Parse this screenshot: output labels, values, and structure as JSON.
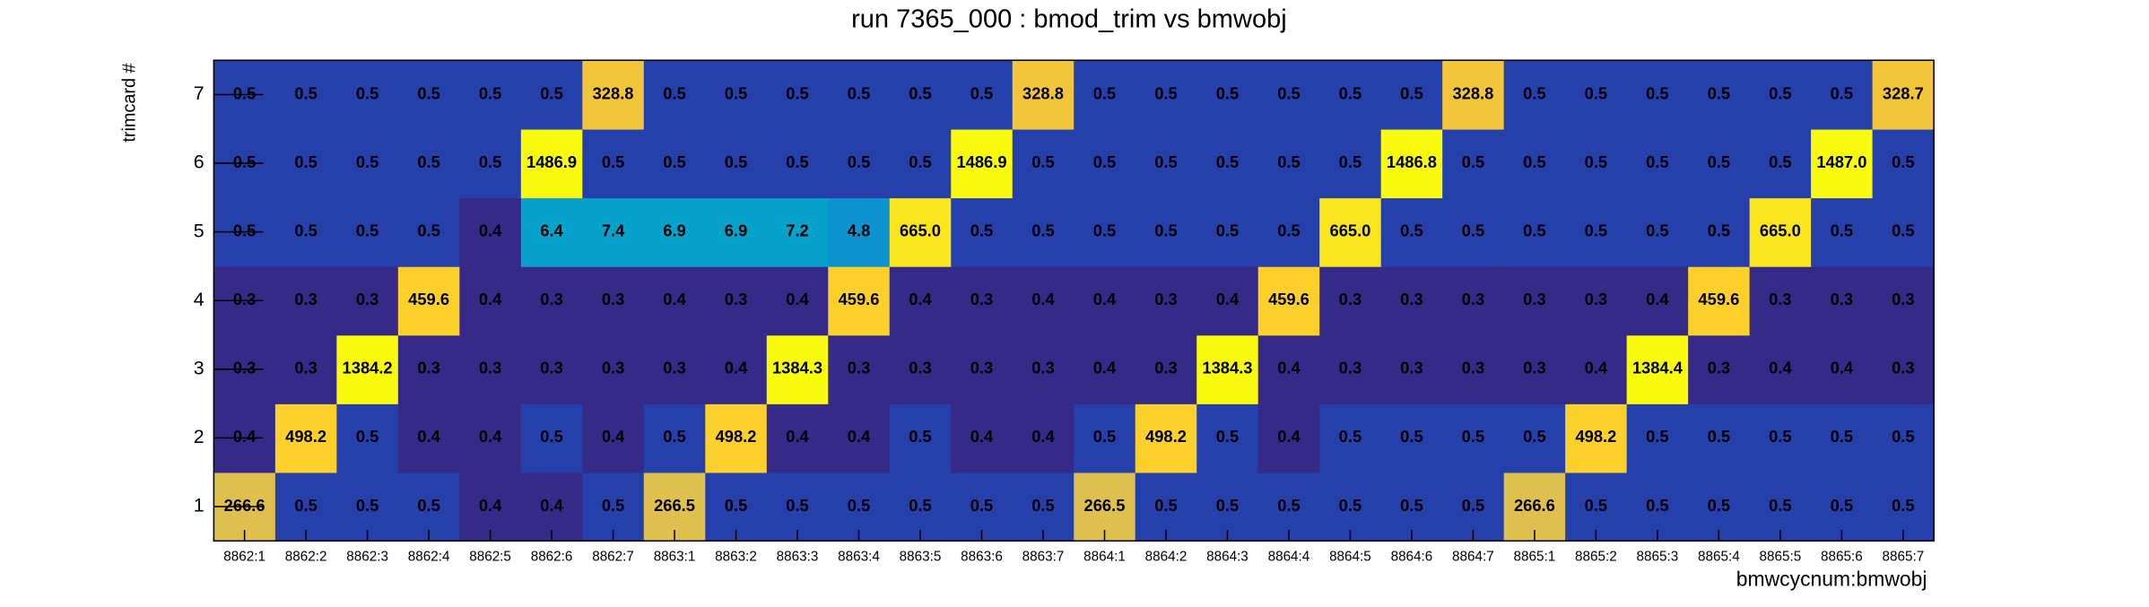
{
  "chart_data": {
    "type": "heatmap",
    "title": "run 7365_000 : bmod_trim vs bmwobj",
    "x_label": "bmwcycnum:bmwobj",
    "y_label": "trimcard #",
    "categories": [
      "8862:1",
      "8862:2",
      "8862:3",
      "8862:4",
      "8862:5",
      "8862:6",
      "8862:7",
      "8863:1",
      "8863:2",
      "8863:3",
      "8863:4",
      "8863:5",
      "8863:6",
      "8863:7",
      "8864:1",
      "8864:2",
      "8864:3",
      "8864:4",
      "8864:5",
      "8864:6",
      "8864:7",
      "8865:1",
      "8865:2",
      "8865:3",
      "8865:4",
      "8865:5",
      "8865:6",
      "8865:7"
    ],
    "y_categories": [
      "1",
      "2",
      "3",
      "4",
      "5",
      "6",
      "7"
    ],
    "values": [
      [
        266.6,
        0.5,
        0.5,
        0.5,
        0.4,
        0.4,
        0.5,
        266.5,
        0.5,
        0.5,
        0.5,
        0.5,
        0.5,
        0.5,
        266.5,
        0.5,
        0.5,
        0.5,
        0.5,
        0.5,
        0.5,
        266.6,
        0.5,
        0.5,
        0.5,
        0.5,
        0.5,
        0.5
      ],
      [
        0.4,
        498.2,
        0.5,
        0.4,
        0.4,
        0.5,
        0.4,
        0.5,
        498.2,
        0.4,
        0.4,
        0.5,
        0.4,
        0.4,
        0.5,
        498.2,
        0.5,
        0.4,
        0.5,
        0.5,
        0.5,
        0.5,
        498.2,
        0.5,
        0.5,
        0.5,
        0.5,
        0.5
      ],
      [
        0.3,
        0.3,
        1384.2,
        0.3,
        0.3,
        0.3,
        0.3,
        0.3,
        0.4,
        1384.3,
        0.3,
        0.3,
        0.3,
        0.3,
        0.4,
        0.3,
        1384.3,
        0.4,
        0.3,
        0.3,
        0.3,
        0.3,
        0.4,
        1384.4,
        0.3,
        0.4,
        0.4,
        0.3
      ],
      [
        0.3,
        0.3,
        0.3,
        459.6,
        0.4,
        0.3,
        0.3,
        0.4,
        0.3,
        0.4,
        459.6,
        0.4,
        0.3,
        0.4,
        0.4,
        0.3,
        0.4,
        459.6,
        0.3,
        0.3,
        0.3,
        0.3,
        0.3,
        0.4,
        459.6,
        0.3,
        0.3,
        0.3
      ],
      [
        0.5,
        0.5,
        0.5,
        0.5,
        0.4,
        6.4,
        7.4,
        6.9,
        6.9,
        7.2,
        4.8,
        665,
        0.5,
        0.5,
        0.5,
        0.5,
        0.5,
        0.5,
        665,
        0.5,
        0.5,
        0.5,
        0.5,
        0.5,
        0.5,
        665,
        0.5,
        0.5
      ],
      [
        0.5,
        0.5,
        0.5,
        0.5,
        0.5,
        1486.9,
        0.5,
        0.5,
        0.5,
        0.5,
        0.5,
        0.5,
        1486.9,
        0.5,
        0.5,
        0.5,
        0.5,
        0.5,
        0.5,
        1486.8,
        0.5,
        0.5,
        0.5,
        0.5,
        0.5,
        0.5,
        1487,
        0.5
      ],
      [
        0.5,
        0.5,
        0.5,
        0.5,
        0.5,
        0.5,
        328.8,
        0.5,
        0.5,
        0.5,
        0.5,
        0.5,
        0.5,
        328.8,
        0.5,
        0.5,
        0.5,
        0.5,
        0.5,
        0.5,
        328.8,
        0.5,
        0.5,
        0.5,
        0.5,
        0.5,
        0.5,
        328.7
      ]
    ],
    "value_labels": [
      [
        "266.6",
        "0.5",
        "0.5",
        "0.5",
        "0.4",
        "0.4",
        "0.5",
        "266.5",
        "0.5",
        "0.5",
        "0.5",
        "0.5",
        "0.5",
        "0.5",
        "266.5",
        "0.5",
        "0.5",
        "0.5",
        "0.5",
        "0.5",
        "0.5",
        "266.6",
        "0.5",
        "0.5",
        "0.5",
        "0.5",
        "0.5",
        "0.5"
      ],
      [
        "0.4",
        "498.2",
        "0.5",
        "0.4",
        "0.4",
        "0.5",
        "0.4",
        "0.5",
        "498.2",
        "0.4",
        "0.4",
        "0.5",
        "0.4",
        "0.4",
        "0.5",
        "498.2",
        "0.5",
        "0.4",
        "0.5",
        "0.5",
        "0.5",
        "0.5",
        "498.2",
        "0.5",
        "0.5",
        "0.5",
        "0.5",
        "0.5"
      ],
      [
        "0.3",
        "0.3",
        "1384.2",
        "0.3",
        "0.3",
        "0.3",
        "0.3",
        "0.3",
        "0.4",
        "1384.3",
        "0.3",
        "0.3",
        "0.3",
        "0.3",
        "0.4",
        "0.3",
        "1384.3",
        "0.4",
        "0.3",
        "0.3",
        "0.3",
        "0.3",
        "0.4",
        "1384.4",
        "0.3",
        "0.4",
        "0.4",
        "0.3"
      ],
      [
        "0.3",
        "0.3",
        "0.3",
        "459.6",
        "0.4",
        "0.3",
        "0.3",
        "0.4",
        "0.3",
        "0.4",
        "459.6",
        "0.4",
        "0.3",
        "0.4",
        "0.4",
        "0.3",
        "0.4",
        "459.6",
        "0.3",
        "0.3",
        "0.3",
        "0.3",
        "0.3",
        "0.4",
        "459.6",
        "0.3",
        "0.3",
        "0.3"
      ],
      [
        "0.5",
        "0.5",
        "0.5",
        "0.5",
        "0.4",
        "6.4",
        "7.4",
        "6.9",
        "6.9",
        "7.2",
        "4.8",
        "665.0",
        "0.5",
        "0.5",
        "0.5",
        "0.5",
        "0.5",
        "0.5",
        "665.0",
        "0.5",
        "0.5",
        "0.5",
        "0.5",
        "0.5",
        "0.5",
        "665.0",
        "0.5",
        "0.5"
      ],
      [
        "0.5",
        "0.5",
        "0.5",
        "0.5",
        "0.5",
        "1486.9",
        "0.5",
        "0.5",
        "0.5",
        "0.5",
        "0.5",
        "0.5",
        "1486.9",
        "0.5",
        "0.5",
        "0.5",
        "0.5",
        "0.5",
        "0.5",
        "1486.8",
        "0.5",
        "0.5",
        "0.5",
        "0.5",
        "0.5",
        "0.5",
        "1487.0",
        "0.5"
      ],
      [
        "0.5",
        "0.5",
        "0.5",
        "0.5",
        "0.5",
        "0.5",
        "328.8",
        "0.5",
        "0.5",
        "0.5",
        "0.5",
        "0.5",
        "0.5",
        "328.8",
        "0.5",
        "0.5",
        "0.5",
        "0.5",
        "0.5",
        "0.5",
        "328.8",
        "0.5",
        "0.5",
        "0.5",
        "0.5",
        "0.5",
        "0.5",
        "328.7"
      ]
    ],
    "colorscale": [
      "#352a87",
      "#0f5cdd",
      "#1481d6",
      "#06a4ca",
      "#2eb7a4",
      "#87bf77",
      "#d1bb59",
      "#fec832",
      "#f9fb0e"
    ],
    "z_log": true,
    "color_levels": 20
  }
}
